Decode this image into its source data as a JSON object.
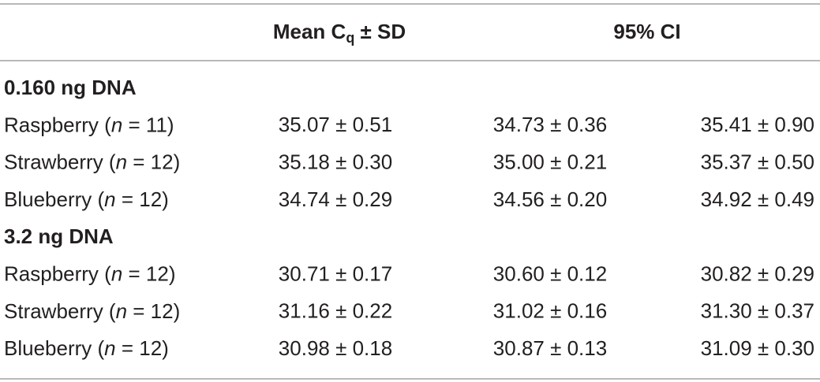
{
  "header": {
    "mean_cq": {
      "text": "Mean C",
      "subscript": "q",
      "suffix": " ± SD"
    },
    "ci": "95% CI"
  },
  "sections": [
    {
      "title": "0.160 ng DNA",
      "rows": [
        {
          "label": [
            "Raspberry (",
            "n",
            " = 11)"
          ],
          "cells": [
            "35.07 ± 0.51",
            "34.73 ± 0.36",
            "35.41 ± 0.90"
          ]
        },
        {
          "label": [
            "Strawberry (",
            "n",
            " = 12)"
          ],
          "cells": [
            "35.18 ± 0.30",
            "35.00 ± 0.21",
            "35.37 ± 0.50"
          ]
        },
        {
          "label": [
            "Blueberry (",
            "n",
            " = 12)"
          ],
          "cells": [
            "34.74 ± 0.29",
            "34.56 ± 0.20",
            "34.92 ± 0.49"
          ]
        }
      ]
    },
    {
      "title": "3.2 ng DNA",
      "rows": [
        {
          "label": [
            "Raspberry (",
            "n",
            " = 12)"
          ],
          "cells": [
            "30.71 ± 0.17",
            "30.60 ± 0.12",
            "30.82 ± 0.29"
          ]
        },
        {
          "label": [
            "Strawberry (",
            "n",
            " = 12)"
          ],
          "cells": [
            "31.16 ± 0.22",
            "31.02 ± 0.16",
            "31.30 ± 0.37"
          ]
        },
        {
          "label": [
            "Blueberry (",
            "n",
            " = 12)"
          ],
          "cells": [
            "30.98 ± 0.18",
            "30.87 ± 0.13",
            "31.09 ± 0.30"
          ]
        }
      ]
    }
  ]
}
